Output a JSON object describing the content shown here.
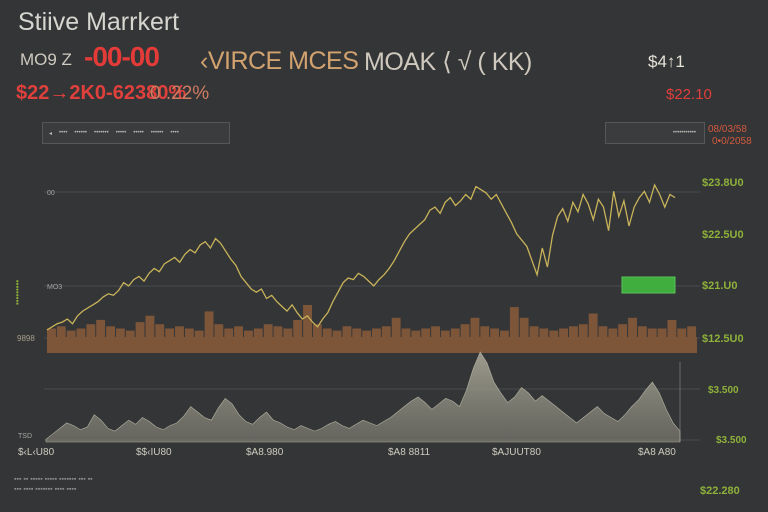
{
  "header": {
    "title": "Stiive Marrkert",
    "ticker_code": "MO9 Z",
    "ticker_red": "-00-00",
    "ticker_name": "‹VIRCE MCES",
    "ticker_tail": "MOAK ⟨ √ ( KK)",
    "price_right": "$4↑1",
    "price_change": "$22→2K0-62380%",
    "price_pct": "0 .22%",
    "price_low": "$22.10"
  },
  "toolbar": {
    "range_tabs": [
      "◂",
      "••••",
      "••••••",
      "•••••••",
      "•••••",
      "•••••",
      "••••••",
      "••••"
    ],
    "info_text": "•••••••••••",
    "top_right_1": "08/03/58",
    "top_right_2": "0•0/2058"
  },
  "footer": {
    "line1": "▪▪▪ ▪▪ ▪▪▪▪▪ ▪▪▪▪▪ ▪▪▪▪▪▪▪ ▪▪▪ ▪▪",
    "line2": "▪▪▪ ▪▪▪▪ ▪▪▪▪▪▪▪ ▪▪▪▪ ▪▪▪▪"
  },
  "colors": {
    "background": "#333537",
    "grid": "#4a4d4f",
    "price_line": "#c9b35a",
    "volume_bar": "#7d5539",
    "area_fill": "#8d8b7d",
    "up_label": "#8fb13a",
    "marker": "#3fae3f",
    "down": "#e0403c"
  },
  "chart_data": {
    "type": "line",
    "panes": [
      {
        "name": "price",
        "series": [
          {
            "values": [
              40,
              42,
              44,
              45,
              47,
              44,
              49,
              52,
              54,
              56,
              58,
              61,
              63,
              62,
              65,
              70,
              68,
              72,
              74,
              71,
              76,
              79,
              77,
              82,
              84,
              86,
              83,
              88,
              91,
              89,
              94,
              96,
              92,
              98,
              95,
              90,
              85,
              81,
              74,
              70,
              66,
              64,
              66,
              60,
              62,
              58,
              55,
              52,
              56,
              51,
              47,
              49,
              45,
              42,
              47,
              51,
              58,
              64,
              70,
              73,
              72,
              76,
              74,
              71,
              68,
              72,
              75,
              79,
              84,
              90,
              96,
              101,
              104,
              107,
              110,
              116,
              118,
              114,
              121,
              124,
              119,
              122,
              126,
              123,
              131,
              129,
              127,
              123,
              126,
              120,
              114,
              108,
              101,
              97,
              93,
              84,
              75,
              92,
              80,
              100,
              112,
              117,
              109,
              121,
              115,
              126,
              120,
              110,
              123,
              118,
              103,
              128,
              112,
              122,
              106,
              118,
              124,
              128,
              121,
              132,
              126,
              118,
              126,
              124
            ]
          }
        ],
        "markers": [
          {
            "label": "",
            "color": "#3fae3f"
          }
        ],
        "y_labels_left": [
          "00",
          "MO3"
        ],
        "y_labels_right": [
          "$23.8U0",
          "$22.5U0",
          "$21.U0",
          "$12.5U0"
        ],
        "vertical_left_label": "•••••••••"
      },
      {
        "name": "volume",
        "series": [
          {
            "values": [
              4,
              5,
              3,
              4,
              6,
              8,
              5,
              4,
              3,
              7,
              10,
              6,
              4,
              5,
              4,
              3,
              12,
              6,
              4,
              5,
              3,
              4,
              6,
              5,
              4,
              8,
              15,
              6,
              4,
              3,
              5,
              4,
              3,
              4,
              5,
              9,
              4,
              3,
              4,
              5,
              3,
              4,
              6,
              9,
              5,
              4,
              3,
              14,
              9,
              5,
              4,
              3,
              4,
              5,
              6,
              11,
              5,
              4,
              6,
              9,
              5,
              4,
              4,
              8,
              4,
              5
            ]
          }
        ]
      },
      {
        "name": "area",
        "series": [
          {
            "values": [
              2,
              6,
              10,
              14,
              12,
              9,
              11,
              20,
              16,
              10,
              8,
              12,
              16,
              13,
              18,
              15,
              11,
              9,
              12,
              14,
              19,
              26,
              22,
              18,
              16,
              25,
              32,
              28,
              20,
              15,
              13,
              18,
              22,
              16,
              14,
              11,
              9,
              12,
              10,
              8,
              10,
              13,
              15,
              12,
              10,
              13,
              16,
              14,
              12,
              15,
              18,
              22,
              26,
              30,
              33,
              29,
              24,
              28,
              32,
              30,
              26,
              38,
              54,
              66,
              58,
              44,
              36,
              29,
              33,
              40,
              36,
              30,
              34,
              30,
              26,
              22,
              18,
              14,
              18,
              22,
              26,
              21,
              18,
              15,
              20,
              26,
              31,
              38,
              44,
              36,
              24,
              14,
              8
            ]
          }
        ],
        "y_labels_left": [
          "",
          "TSD"
        ],
        "y_labels_right": [
          "$3.500",
          "$3.500"
        ]
      }
    ],
    "x_tick_labels": [
      "$‹L‹U80",
      "$$‹IU80",
      "$A8.980",
      "$A8 8811",
      "$AJUUT80",
      "$A8 A80"
    ],
    "bottom_right_label": "$22.280"
  }
}
